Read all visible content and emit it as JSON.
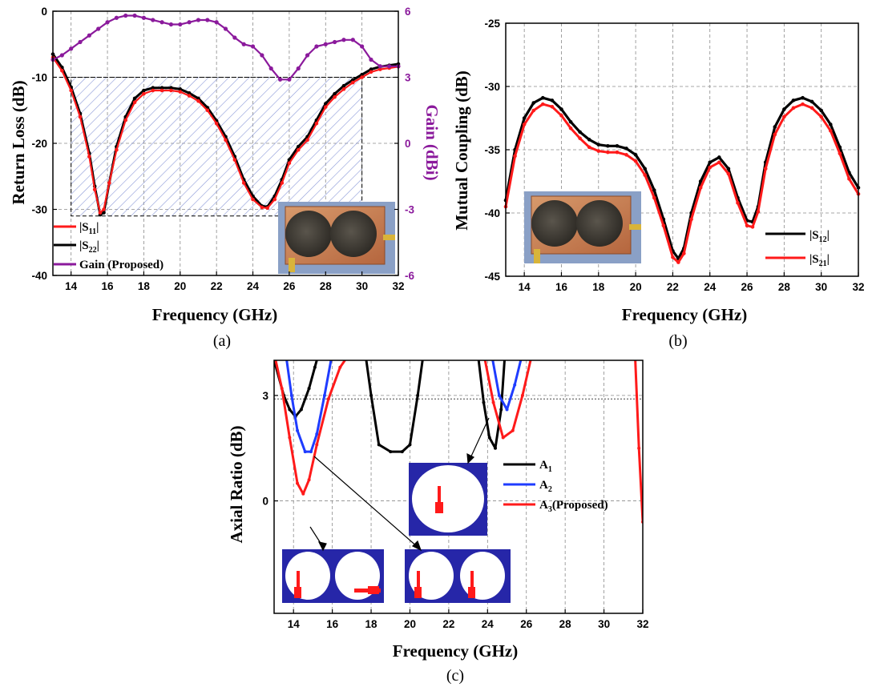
{
  "colors": {
    "s11": "#ff1a1a",
    "s22": "#000000",
    "gain": "#8b1a9c",
    "a1": "#000000",
    "a2": "#1f3cff",
    "a3": "#ff1a1a",
    "inset_blue": "#2626a8"
  },
  "chart_data": [
    {
      "id": "a",
      "type": "line",
      "caption": "(a)",
      "xlabel": "Frequency (GHz)",
      "ylabel": "Return Loss (dB)",
      "y2label": "Gain (dBi)",
      "xlim": [
        13,
        32
      ],
      "ylim": [
        -40,
        0
      ],
      "y2lim": [
        -6,
        6
      ],
      "xticks": [
        14,
        16,
        18,
        20,
        22,
        24,
        26,
        28,
        30,
        32
      ],
      "yticks": [
        0,
        -10,
        -20,
        -30,
        -40
      ],
      "y2ticks": [
        6,
        3,
        0,
        -3,
        -6
      ],
      "grid": true,
      "legend_position": "bottom-left",
      "annotation": "hatched -10 dB bandwidth region 14–30 GHz with photo of fabricated antenna",
      "series": [
        {
          "name": "|S11|",
          "axis": "left",
          "x": [
            13,
            13.5,
            14,
            14.5,
            15,
            15.3,
            15.6,
            15.8,
            16.1,
            16.5,
            17,
            17.5,
            18,
            18.5,
            19,
            19.5,
            20,
            20.5,
            21,
            21.5,
            22,
            22.5,
            23,
            23.5,
            24,
            24.5,
            24.8,
            25.2,
            25.6,
            26,
            26.5,
            27,
            27.5,
            28,
            28.5,
            29,
            29.5,
            30,
            30.5,
            31,
            31.5,
            32
          ],
          "y": [
            -7,
            -9,
            -12,
            -16,
            -22,
            -27,
            -30.5,
            -30,
            -26,
            -21,
            -16.5,
            -13.8,
            -12.5,
            -12,
            -12,
            -12,
            -12.2,
            -12.8,
            -13.6,
            -15,
            -17,
            -19.5,
            -22.5,
            -26,
            -28.5,
            -29.7,
            -29.8,
            -28.5,
            -26,
            -23,
            -21,
            -19.5,
            -17,
            -14.5,
            -13,
            -11.8,
            -10.8,
            -10,
            -9.2,
            -8.8,
            -8.6,
            -8.4
          ]
        },
        {
          "name": "|S22|",
          "axis": "left",
          "x": [
            13,
            13.5,
            14,
            14.5,
            15,
            15.3,
            15.6,
            15.8,
            16.1,
            16.5,
            17,
            17.5,
            18,
            18.5,
            19,
            19.5,
            20,
            20.5,
            21,
            21.5,
            22,
            22.5,
            23,
            23.5,
            24,
            24.5,
            24.8,
            25.2,
            25.6,
            26,
            26.5,
            27,
            27.5,
            28,
            28.5,
            29,
            29.5,
            30,
            30.5,
            31,
            31.5,
            32
          ],
          "y": [
            -6.5,
            -8.5,
            -11.5,
            -15.5,
            -21.5,
            -26.5,
            -30.8,
            -30.5,
            -26,
            -20.5,
            -16,
            -13.2,
            -12,
            -11.6,
            -11.6,
            -11.6,
            -11.8,
            -12.4,
            -13.2,
            -14.6,
            -16.6,
            -19,
            -22,
            -25.5,
            -28,
            -29.5,
            -29.6,
            -28,
            -25.5,
            -22.5,
            -20.5,
            -19,
            -16.5,
            -14,
            -12.5,
            -11.3,
            -10.4,
            -9.6,
            -8.8,
            -8.4,
            -8.2,
            -8
          ]
        },
        {
          "name": "Gain (Proposed)",
          "axis": "right",
          "x": [
            13,
            13.5,
            14,
            14.5,
            15,
            15.5,
            16,
            16.5,
            17,
            17.5,
            18,
            18.5,
            19,
            19.5,
            20,
            20.5,
            21,
            21.5,
            22,
            22.5,
            23,
            23.5,
            24,
            24.5,
            25,
            25.5,
            26,
            26.5,
            27,
            27.5,
            28,
            28.5,
            29,
            29.5,
            30,
            30.5,
            31,
            31.5,
            32
          ],
          "y": [
            3.8,
            4.0,
            4.3,
            4.6,
            4.9,
            5.2,
            5.5,
            5.7,
            5.8,
            5.8,
            5.7,
            5.6,
            5.5,
            5.4,
            5.4,
            5.5,
            5.6,
            5.6,
            5.5,
            5.2,
            4.8,
            4.5,
            4.4,
            4.0,
            3.4,
            2.9,
            2.9,
            3.4,
            4.0,
            4.4,
            4.5,
            4.6,
            4.7,
            4.7,
            4.4,
            3.8,
            3.5,
            3.5,
            3.5
          ]
        }
      ]
    },
    {
      "id": "b",
      "type": "line",
      "caption": "(b)",
      "xlabel": "Frequency (GHz)",
      "ylabel": "Mutual Coupling (dB)",
      "xlim": [
        13,
        32
      ],
      "ylim": [
        -45,
        -25
      ],
      "xticks": [
        14,
        16,
        18,
        20,
        22,
        24,
        26,
        28,
        30,
        32
      ],
      "yticks": [
        -25,
        -30,
        -35,
        -40,
        -45
      ],
      "grid": true,
      "legend_position": "bottom-right",
      "series": [
        {
          "name": "|S12|",
          "x": [
            13,
            13.5,
            14,
            14.5,
            15,
            15.5,
            16,
            16.5,
            17,
            17.5,
            18,
            18.5,
            19,
            19.5,
            20,
            20.5,
            21,
            21.5,
            22,
            22.3,
            22.6,
            23,
            23.5,
            24,
            24.5,
            25,
            25.5,
            26,
            26.3,
            26.6,
            27,
            27.5,
            28,
            28.5,
            29,
            29.5,
            30,
            30.5,
            31,
            31.5,
            32
          ],
          "y": [
            -39,
            -35,
            -32.5,
            -31.3,
            -30.9,
            -31.1,
            -31.8,
            -32.8,
            -33.6,
            -34.2,
            -34.6,
            -34.7,
            -34.7,
            -34.9,
            -35.4,
            -36.5,
            -38.2,
            -40.5,
            -43,
            -43.6,
            -42.8,
            -40,
            -37.5,
            -36,
            -35.6,
            -36.5,
            -38.8,
            -40.6,
            -40.7,
            -39.5,
            -36,
            -33.2,
            -31.8,
            -31.1,
            -30.9,
            -31.2,
            -31.9,
            -33,
            -34.8,
            -36.8,
            -38
          ]
        },
        {
          "name": "|S21|",
          "x": [
            13,
            13.5,
            14,
            14.5,
            15,
            15.5,
            16,
            16.5,
            17,
            17.5,
            18,
            18.5,
            19,
            19.5,
            20,
            20.5,
            21,
            21.5,
            22,
            22.3,
            22.6,
            23,
            23.5,
            24,
            24.5,
            25,
            25.5,
            26,
            26.3,
            26.6,
            27,
            27.5,
            28,
            28.5,
            29,
            29.5,
            30,
            30.5,
            31,
            31.5,
            32
          ],
          "y": [
            -39.5,
            -35.5,
            -33,
            -31.9,
            -31.4,
            -31.6,
            -32.3,
            -33.3,
            -34.1,
            -34.8,
            -35.1,
            -35.2,
            -35.2,
            -35.4,
            -35.9,
            -37,
            -38.8,
            -41,
            -43.5,
            -43.9,
            -43.2,
            -40.5,
            -38,
            -36.4,
            -36,
            -36.9,
            -39.2,
            -41,
            -41.1,
            -39.9,
            -36.5,
            -33.8,
            -32.4,
            -31.7,
            -31.4,
            -31.7,
            -32.4,
            -33.5,
            -35.3,
            -37.3,
            -38.5
          ]
        }
      ]
    },
    {
      "id": "c",
      "type": "line",
      "caption": "(c)",
      "xlabel": "Frequency (GHz)",
      "ylabel": "Axial Ratio (dB)",
      "xlim": [
        13,
        32
      ],
      "ylim": [
        -3.2,
        4.0
      ],
      "xticks": [
        14,
        16,
        18,
        20,
        22,
        24,
        26,
        28,
        30,
        32
      ],
      "yticks": [
        3,
        0
      ],
      "ytick_labels": [
        "3",
        "0"
      ],
      "grid": true,
      "legend_position": "right",
      "series": [
        {
          "name": "A1",
          "x": [
            13,
            13.5,
            13.8,
            14.1,
            14.4,
            14.8,
            15.1,
            15.3,
            17.7,
            18.0,
            18.4,
            19.0,
            19.6,
            20.0,
            20.4,
            20.7,
            23.5,
            23.8,
            24.1,
            24.4,
            24.7,
            24.9
          ],
          "y": [
            4.0,
            3.0,
            2.6,
            2.4,
            2.6,
            3.2,
            3.8,
            4.2,
            4.2,
            3.0,
            1.6,
            1.4,
            1.4,
            1.6,
            3.0,
            4.2,
            4.2,
            2.8,
            1.8,
            1.5,
            2.6,
            4.2
          ]
        },
        {
          "name": "A2",
          "x": [
            13.6,
            13.9,
            14.2,
            14.6,
            14.9,
            15.2,
            15.6,
            16.0,
            24.2,
            24.6,
            25.0,
            25.4,
            25.8
          ],
          "y": [
            4.2,
            3.0,
            2.0,
            1.4,
            1.4,
            1.9,
            3.0,
            4.2,
            4.2,
            3.0,
            2.6,
            3.3,
            4.2
          ]
        },
        {
          "name": "A3(Proposed)",
          "x": [
            13,
            13.4,
            13.8,
            14.2,
            14.5,
            14.8,
            15.2,
            15.8,
            16.4,
            16.9,
            23.8,
            24.3,
            24.8,
            25.3,
            25.8,
            26.3,
            31.6,
            31.8,
            32
          ],
          "y": [
            4.2,
            3.2,
            1.8,
            0.5,
            0.2,
            0.6,
            1.6,
            2.9,
            3.8,
            4.2,
            4.2,
            2.8,
            1.8,
            2.0,
            3.0,
            4.2,
            4.2,
            1.5,
            -0.6
          ]
        }
      ]
    }
  ],
  "legend": {
    "a": {
      "s11": {
        "base": "|S",
        "sub": "11",
        "close": "|"
      },
      "s22": {
        "base": "|S",
        "sub": "22",
        "close": "|"
      },
      "gain": "Gain (Proposed)"
    },
    "b": {
      "s12": {
        "base": "|S",
        "sub": "12",
        "close": "|"
      },
      "s21": {
        "base": "|S",
        "sub": "21",
        "close": "|"
      }
    },
    "c": {
      "a1": {
        "base": "A",
        "sub": "1",
        "close": ""
      },
      "a2": {
        "base": "A",
        "sub": "2",
        "close": ""
      },
      "a3": {
        "base": "A",
        "sub": "3",
        "close": "(Proposed)"
      }
    }
  }
}
